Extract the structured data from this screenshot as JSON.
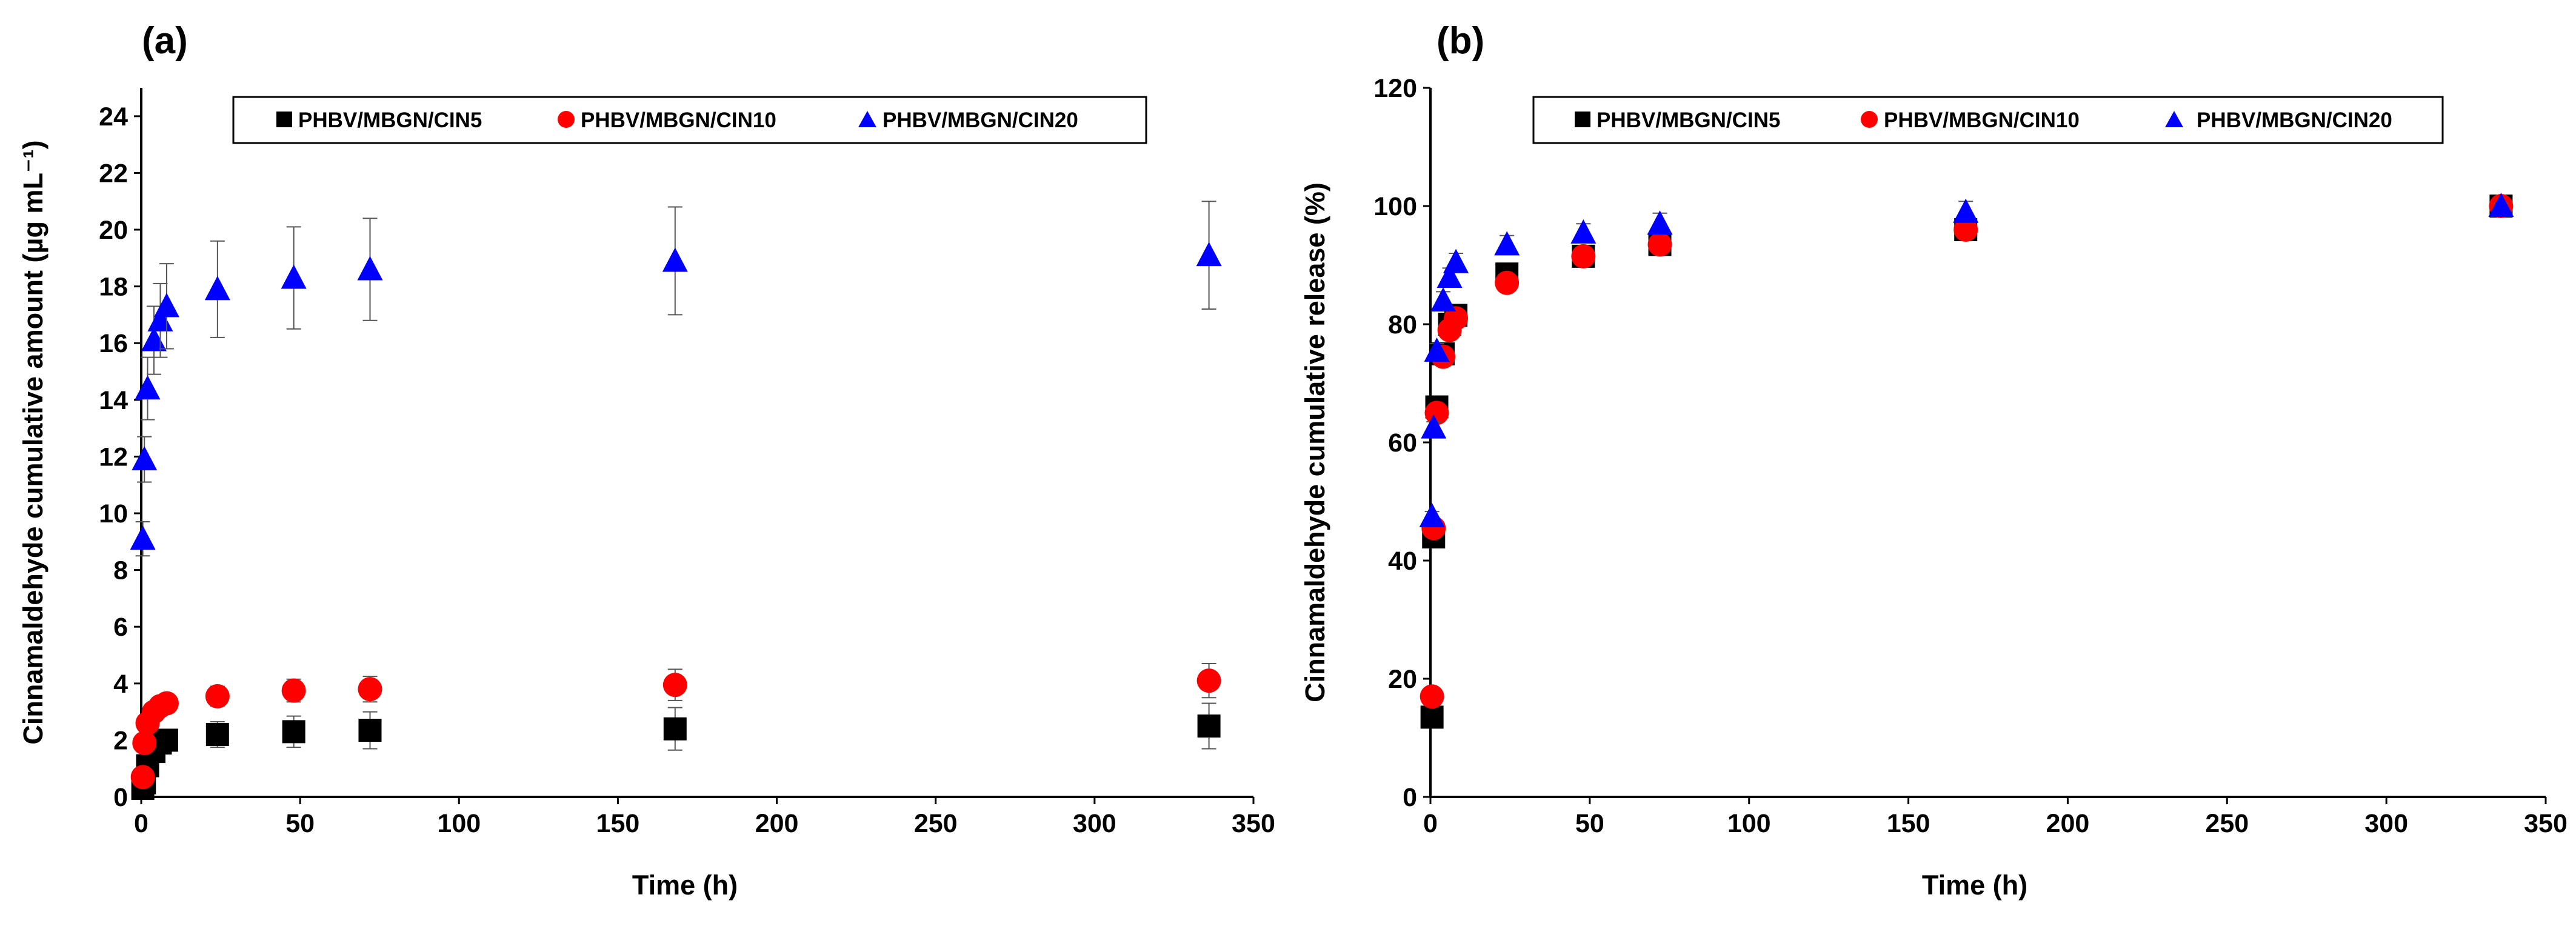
{
  "panels": [
    {
      "label": "(a)",
      "ylabel": "Cinnamaldehyde cumulative amount (µg mL⁻¹)",
      "chart_data": {
        "type": "scatter",
        "title": "",
        "xlabel": "Time (h)",
        "ylabel": "Cinnamaldehyde cumulative amount (µg mL⁻¹)",
        "xlim": [
          0,
          350
        ],
        "ylim": [
          0,
          25
        ],
        "xticks": [
          0,
          50,
          100,
          150,
          200,
          250,
          300,
          350
        ],
        "yticks": [
          0,
          2,
          4,
          6,
          8,
          10,
          12,
          14,
          16,
          18,
          20,
          22,
          24
        ],
        "grid": false,
        "legend_position": "top-center",
        "series": [
          {
            "name": "PHBV/MBGN/CIN5",
            "marker": "square",
            "color": "#000000",
            "x": [
              0.5,
              1,
              2,
              4,
              6,
              8,
              24,
              48,
              72,
              168,
              336
            ],
            "y": [
              0.3,
              0.5,
              1.1,
              1.6,
              1.9,
              2.0,
              2.2,
              2.3,
              2.35,
              2.4,
              2.5
            ],
            "err": [
              0.1,
              0.15,
              0.2,
              0.3,
              0.3,
              0.3,
              0.45,
              0.55,
              0.65,
              0.75,
              0.8
            ]
          },
          {
            "name": "PHBV/MBGN/CIN10",
            "marker": "circle",
            "color": "#ff0000",
            "x": [
              0.5,
              1,
              2,
              4,
              6,
              8,
              24,
              48,
              72,
              168,
              336
            ],
            "y": [
              0.7,
              1.9,
              2.6,
              3.0,
              3.2,
              3.3,
              3.55,
              3.75,
              3.8,
              3.95,
              4.1
            ],
            "err": [
              0.1,
              0.15,
              0.2,
              0.2,
              0.25,
              0.3,
              0.35,
              0.4,
              0.45,
              0.55,
              0.6
            ]
          },
          {
            "name": "PHBV/MBGN/CIN20",
            "marker": "triangle",
            "color": "#0000ff",
            "x": [
              0.5,
              1,
              2,
              4,
              6,
              8,
              24,
              48,
              72,
              168,
              336
            ],
            "y": [
              9.1,
              11.9,
              14.4,
              16.1,
              16.8,
              17.3,
              17.9,
              18.3,
              18.6,
              18.9,
              19.1
            ],
            "err": [
              0.6,
              0.8,
              1.1,
              1.2,
              1.3,
              1.5,
              1.7,
              1.8,
              1.8,
              1.9,
              1.9
            ]
          }
        ]
      }
    },
    {
      "label": "(b)",
      "ylabel": "Cinnamaldehyde cumulative release (%)",
      "chart_data": {
        "type": "scatter",
        "title": "",
        "xlabel": "Time (h)",
        "ylabel": "Cinnamaldehyde cumulative release (%)",
        "xlim": [
          0,
          350
        ],
        "ylim": [
          0,
          120
        ],
        "xticks": [
          0,
          50,
          100,
          150,
          200,
          250,
          300,
          350
        ],
        "yticks": [
          0,
          20,
          40,
          60,
          80,
          100,
          120
        ],
        "grid": false,
        "legend_position": "top-center",
        "series": [
          {
            "name": "PHBV/MBGN/CIN5",
            "marker": "square",
            "color": "#000000",
            "x": [
              0.5,
              1,
              2,
              4,
              6,
              8,
              24,
              48,
              72,
              168,
              336
            ],
            "y": [
              13.5,
              44,
              66,
              75,
              80,
              81.5,
              88.5,
              91.5,
              93.5,
              96,
              100
            ],
            "err": [
              0.5,
              0.8,
              1.0,
              1.0,
              1.0,
              1.0,
              1.0,
              1.0,
              1.0,
              1.0,
              0.5
            ]
          },
          {
            "name": "PHBV/MBGN/CIN10",
            "marker": "circle",
            "color": "#ff0000",
            "x": [
              0.5,
              1,
              2,
              4,
              6,
              8,
              24,
              48,
              72,
              168,
              336
            ],
            "y": [
              17,
              45.5,
              65,
              74.5,
              79,
              81,
              87,
              91.5,
              93.5,
              96,
              100
            ],
            "err": [
              0.5,
              0.8,
              1.0,
              1.0,
              1.0,
              1.0,
              1.0,
              1.0,
              1.0,
              1.0,
              0.5
            ]
          },
          {
            "name": "PHBV/MBGN/CIN20",
            "marker": "triangle",
            "color": "#0000ff",
            "x": [
              0.5,
              1,
              2,
              4,
              6,
              8,
              24,
              48,
              72,
              168,
              336
            ],
            "y": [
              47.5,
              62.5,
              75.5,
              84,
              88,
              90.5,
              93.5,
              95.5,
              97,
              99,
              100
            ],
            "err": [
              0.8,
              1.0,
              1.2,
              1.5,
              1.5,
              1.5,
              1.5,
              1.5,
              1.8,
              1.8,
              0.5
            ]
          }
        ]
      }
    }
  ]
}
